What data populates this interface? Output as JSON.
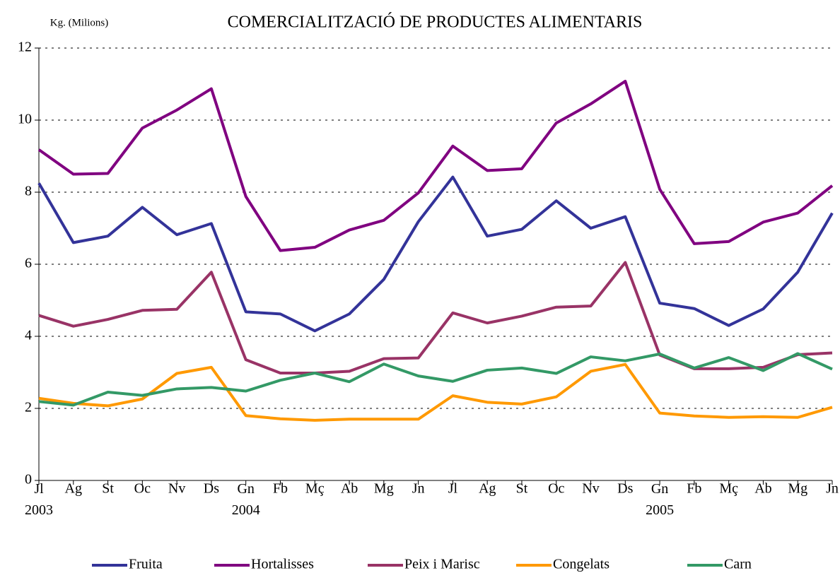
{
  "chart_data": {
    "type": "line",
    "title": "COMERCIALITZACIÓ DE PRODUCTES ALIMENTARIS",
    "y_label": "Kg. (Milions)",
    "categories": [
      "Jl 2003",
      "Ag",
      "St",
      "Oc",
      "Nv",
      "Ds",
      "Gn 2004",
      "Fb",
      "Mç",
      "Ab",
      "Mg",
      "Jn",
      "Jl",
      "Ag",
      "St",
      "Oc",
      "Nv",
      "Ds",
      "Gn 2005",
      "Fb",
      "Mç",
      "Ab",
      "Mg",
      "Jn"
    ],
    "series": [
      {
        "name": "Fruita",
        "color": "#333399",
        "values": [
          8.25,
          6.6,
          6.78,
          7.58,
          6.82,
          7.13,
          4.68,
          4.62,
          4.15,
          4.62,
          5.58,
          7.18,
          8.42,
          6.78,
          6.97,
          7.76,
          7.0,
          7.32,
          4.92,
          4.77,
          4.3,
          4.76,
          5.78,
          7.42
        ]
      },
      {
        "name": "Hortalisses",
        "color": "#800080",
        "values": [
          9.18,
          8.5,
          8.52,
          9.78,
          10.28,
          10.87,
          7.88,
          6.38,
          6.47,
          6.95,
          7.22,
          7.98,
          9.28,
          8.6,
          8.65,
          9.92,
          10.45,
          11.08,
          8.08,
          6.57,
          6.63,
          7.17,
          7.42,
          8.18
        ]
      },
      {
        "name": "Peix i Marisc",
        "color": "#993366",
        "values": [
          4.58,
          4.28,
          4.47,
          4.72,
          4.75,
          5.78,
          3.35,
          2.98,
          2.98,
          3.03,
          3.38,
          3.4,
          4.65,
          4.37,
          4.56,
          4.81,
          4.84,
          6.05,
          3.48,
          3.1,
          3.1,
          3.14,
          3.49,
          3.54
        ]
      },
      {
        "name": "Congelats",
        "color": "#ff9900",
        "values": [
          2.28,
          2.14,
          2.07,
          2.26,
          2.97,
          3.14,
          1.8,
          1.71,
          1.67,
          1.7,
          1.7,
          1.7,
          2.35,
          2.17,
          2.12,
          2.32,
          3.03,
          3.22,
          1.87,
          1.79,
          1.75,
          1.77,
          1.75,
          2.03
        ]
      },
      {
        "name": "Carn",
        "color": "#339966",
        "values": [
          2.19,
          2.09,
          2.45,
          2.36,
          2.54,
          2.58,
          2.48,
          2.78,
          2.98,
          2.74,
          3.23,
          2.9,
          2.75,
          3.06,
          3.12,
          2.97,
          3.43,
          3.32,
          3.51,
          3.12,
          3.41,
          3.05,
          3.52,
          3.09
        ]
      }
    ],
    "ylim": [
      0,
      12
    ],
    "yticks": [
      0,
      2,
      4,
      6,
      8,
      10,
      12
    ],
    "grid": true,
    "legend": "bottom"
  }
}
